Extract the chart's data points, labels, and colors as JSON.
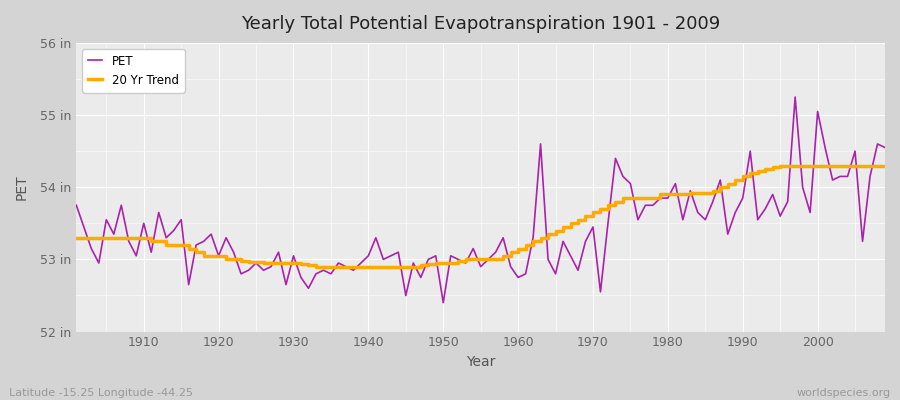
{
  "title": "Yearly Total Potential Evapotranspiration 1901 - 2009",
  "xlabel": "Year",
  "ylabel": "PET",
  "subtitle_left": "Latitude -15.25 Longitude -44.25",
  "subtitle_right": "worldspecies.org",
  "ylim": [
    52,
    56
  ],
  "yticks": [
    52,
    53,
    54,
    55,
    56
  ],
  "ytick_labels": [
    "52 in",
    "53 in",
    "54 in",
    "55 in",
    "56 in"
  ],
  "xticks": [
    1910,
    1920,
    1930,
    1940,
    1950,
    1960,
    1970,
    1980,
    1990,
    2000
  ],
  "pet_color": "#aa22aa",
  "trend_color": "#ffaa00",
  "bg_color": "#e8e8e8",
  "plot_bg_color": "#ebebeb",
  "grid_color": "#ffffff",
  "years": [
    1901,
    1902,
    1903,
    1904,
    1905,
    1906,
    1907,
    1908,
    1909,
    1910,
    1911,
    1912,
    1913,
    1914,
    1915,
    1916,
    1917,
    1918,
    1919,
    1920,
    1921,
    1922,
    1923,
    1924,
    1925,
    1926,
    1927,
    1928,
    1929,
    1930,
    1931,
    1932,
    1933,
    1934,
    1935,
    1936,
    1937,
    1938,
    1939,
    1940,
    1941,
    1942,
    1943,
    1944,
    1945,
    1946,
    1947,
    1948,
    1949,
    1950,
    1951,
    1952,
    1953,
    1954,
    1955,
    1956,
    1957,
    1958,
    1959,
    1960,
    1961,
    1962,
    1963,
    1964,
    1965,
    1966,
    1967,
    1968,
    1969,
    1970,
    1971,
    1972,
    1973,
    1974,
    1975,
    1976,
    1977,
    1978,
    1979,
    1980,
    1981,
    1982,
    1983,
    1984,
    1985,
    1986,
    1987,
    1988,
    1989,
    1990,
    1991,
    1992,
    1993,
    1994,
    1995,
    1996,
    1997,
    1998,
    1999,
    2000,
    2001,
    2002,
    2003,
    2004,
    2005,
    2006,
    2007,
    2008,
    2009
  ],
  "pet_values": [
    53.75,
    53.45,
    53.15,
    52.95,
    53.55,
    53.35,
    53.75,
    53.25,
    53.05,
    53.5,
    53.1,
    53.65,
    53.3,
    53.4,
    53.55,
    52.65,
    53.2,
    53.25,
    53.35,
    53.05,
    53.3,
    53.1,
    52.8,
    52.85,
    52.95,
    52.85,
    52.9,
    53.1,
    52.65,
    53.05,
    52.75,
    52.6,
    52.8,
    52.85,
    52.8,
    52.95,
    52.9,
    52.85,
    52.95,
    53.05,
    53.3,
    53.0,
    53.05,
    53.1,
    52.5,
    52.95,
    52.75,
    53.0,
    53.05,
    52.4,
    53.05,
    53.0,
    52.95,
    53.15,
    52.9,
    53.0,
    53.1,
    53.3,
    52.9,
    52.75,
    52.8,
    53.3,
    54.6,
    53.0,
    52.8,
    53.25,
    53.05,
    52.85,
    53.25,
    53.45,
    52.55,
    53.5,
    54.4,
    54.15,
    54.05,
    53.55,
    53.75,
    53.75,
    53.85,
    53.85,
    54.05,
    53.55,
    53.95,
    53.65,
    53.55,
    53.8,
    54.1,
    53.35,
    53.65,
    53.85,
    54.5,
    53.55,
    53.7,
    53.9,
    53.6,
    53.8,
    55.25,
    54.0,
    53.65,
    55.05,
    54.55,
    54.1,
    54.15,
    54.15,
    54.5,
    53.25,
    54.15,
    54.6,
    54.55
  ],
  "trend_values": [
    53.3,
    53.3,
    53.3,
    53.3,
    53.3,
    53.3,
    53.3,
    53.3,
    53.3,
    53.3,
    53.25,
    53.25,
    53.2,
    53.2,
    53.2,
    53.15,
    53.1,
    53.05,
    53.05,
    53.05,
    53.0,
    53.0,
    52.98,
    52.97,
    52.96,
    52.95,
    52.95,
    52.95,
    52.95,
    52.95,
    52.93,
    52.92,
    52.9,
    52.9,
    52.9,
    52.9,
    52.9,
    52.9,
    52.9,
    52.9,
    52.9,
    52.9,
    52.9,
    52.9,
    52.9,
    52.9,
    52.92,
    52.93,
    52.95,
    52.95,
    52.95,
    52.98,
    53.0,
    53.0,
    53.0,
    53.0,
    53.0,
    53.05,
    53.1,
    53.15,
    53.2,
    53.25,
    53.3,
    53.35,
    53.4,
    53.45,
    53.5,
    53.55,
    53.6,
    53.65,
    53.7,
    53.75,
    53.8,
    53.85,
    53.85,
    53.85,
    53.85,
    53.85,
    53.9,
    53.9,
    53.9,
    53.9,
    53.92,
    53.92,
    53.92,
    53.95,
    54.0,
    54.05,
    54.1,
    54.15,
    54.2,
    54.22,
    54.25,
    54.28,
    54.3,
    54.3,
    54.3,
    54.3,
    54.3,
    54.3,
    54.3,
    54.3,
    54.3,
    54.3,
    54.3,
    54.3,
    54.3,
    54.3,
    54.3
  ]
}
